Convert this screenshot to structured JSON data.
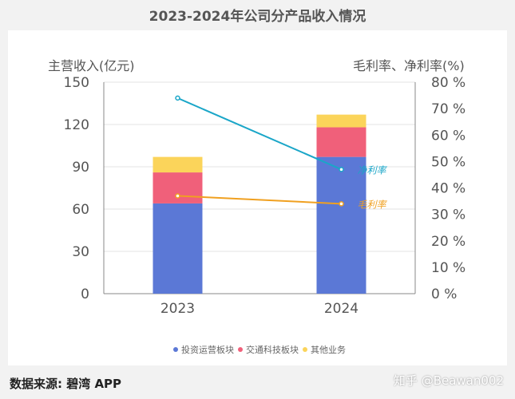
{
  "chart_data": {
    "type": "bar",
    "title": "2023-2024年公司分产品收入情况",
    "ylabel": "主营收入(亿元)",
    "y2label": "毛利率、净利率(%)",
    "categories": [
      "2023",
      "2024"
    ],
    "ylim": [
      0,
      150
    ],
    "yticks": [
      0,
      30,
      60,
      90,
      120,
      150
    ],
    "y2lim": [
      0,
      80
    ],
    "y2ticks": [
      "0 %",
      "10 %",
      "20 %",
      "30 %",
      "40 %",
      "50 %",
      "60 %",
      "70 %",
      "80 %"
    ],
    "grid": true,
    "legend_position": "bottom",
    "series": [
      {
        "name": "投资运营板块",
        "kind": "bar",
        "values": [
          64,
          97
        ],
        "color": "#5b78d6"
      },
      {
        "name": "交通科技板块",
        "kind": "bar",
        "values": [
          22,
          21
        ],
        "color": "#f0607a"
      },
      {
        "name": "其他业务",
        "kind": "bar",
        "values": [
          11,
          9
        ],
        "color": "#fbd45a"
      },
      {
        "name": "净利率",
        "kind": "line",
        "axis": "right",
        "values": [
          74,
          47
        ],
        "color": "#1aa6c8"
      },
      {
        "name": "毛利率",
        "kind": "line",
        "axis": "right",
        "values": [
          37,
          34
        ],
        "color": "#f0a020"
      }
    ]
  },
  "footer": {
    "source": "数据来源: 碧湾 APP",
    "credit": "知乎 @Beawan002"
  }
}
